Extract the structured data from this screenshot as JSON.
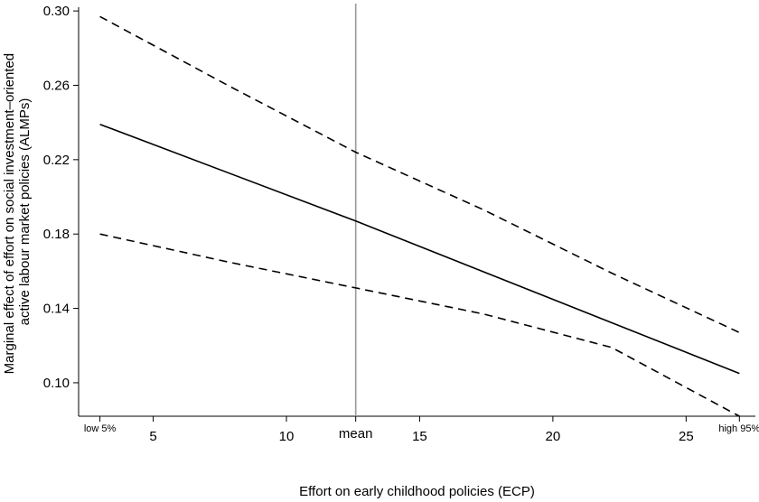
{
  "chart_data": {
    "type": "line",
    "title": "",
    "xlabel": "Effort on early childhood policies (ECP)",
    "ylabel_lines": [
      "Marginal effect of effort on social investment–oriented",
      "active labour market policies (ALMPs)"
    ],
    "xlim": [
      2.2,
      27.6
    ],
    "ylim": [
      0.082,
      0.302
    ],
    "x_ticks": [
      5,
      10,
      15,
      20,
      25
    ],
    "x_tick_labels": [
      "5",
      "10",
      "15",
      "20",
      "25"
    ],
    "y_ticks": [
      0.1,
      0.14,
      0.18,
      0.22,
      0.26,
      0.3
    ],
    "y_tick_labels": [
      "0.10",
      "0.14",
      "0.18",
      "0.22",
      "0.26",
      "0.30"
    ],
    "markers": [
      {
        "label": "low 5%",
        "x": 3.0
      },
      {
        "label": "mean",
        "x": 12.6
      },
      {
        "label": "high 95%",
        "x": 27.0
      }
    ],
    "reference_line_x": 12.6,
    "grid": false,
    "series": [
      {
        "role": "estimate",
        "style": "solid",
        "x": [
          3.0,
          12.6,
          27.0
        ],
        "y": [
          0.239,
          0.187,
          0.105
        ]
      },
      {
        "role": "upper-bound",
        "style": "dashed",
        "x": [
          3.0,
          7.8,
          12.6,
          17.4,
          22.2,
          27.0
        ],
        "y": [
          0.297,
          0.26,
          0.224,
          0.193,
          0.159,
          0.127
        ]
      },
      {
        "role": "lower-bound",
        "style": "dashed",
        "x": [
          3.0,
          7.8,
          12.6,
          17.4,
          22.2,
          27.0
        ],
        "y": [
          0.18,
          0.165,
          0.151,
          0.137,
          0.119,
          0.082
        ]
      }
    ]
  }
}
